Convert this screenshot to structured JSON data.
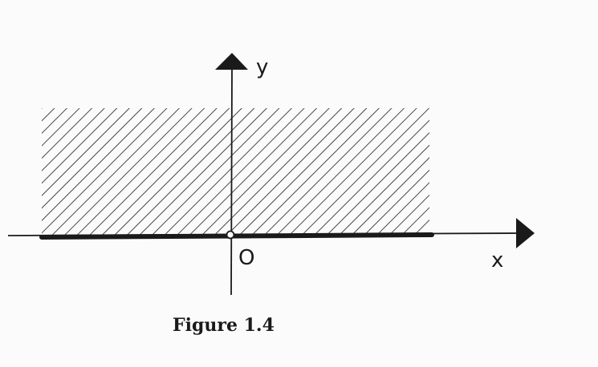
{
  "diagram": {
    "x_axis_label": "x",
    "y_axis_label": "y",
    "origin_label": "O",
    "caption": "Figure 1.4",
    "shaded_region": "upper half-plane, hatched",
    "boundary": "x-axis drawn bold, origin marked with open circle",
    "colors": {
      "ink": "#1a1a1a",
      "paper": "#fbfbfb"
    }
  }
}
